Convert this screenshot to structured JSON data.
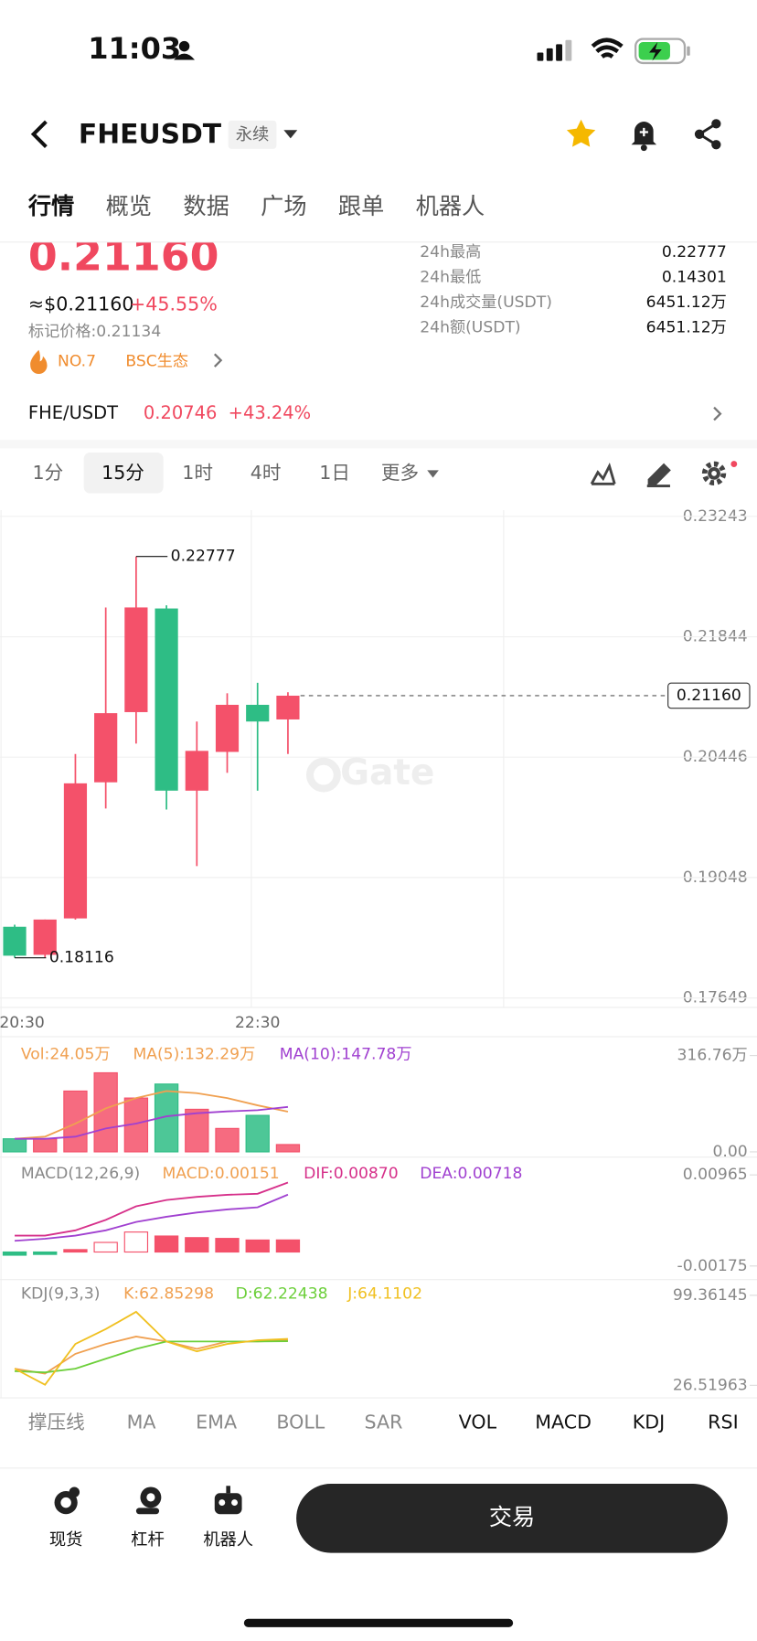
{
  "status": {
    "time": "11:03"
  },
  "header": {
    "symbol": "FHEUSDT",
    "tag": "永续"
  },
  "tabs": [
    "行情",
    "概览",
    "数据",
    "广场",
    "跟单",
    "机器人"
  ],
  "ticker": {
    "price": "0.21160",
    "usd": "≈$0.21160",
    "change": "+45.55%",
    "mark": "标记价格:0.21134",
    "rank": "NO.7",
    "sector": "BSC生态"
  },
  "stats": [
    {
      "label": "24h最高",
      "value": "0.22777"
    },
    {
      "label": "24h最低",
      "value": "0.14301"
    },
    {
      "label": "24h成交量(USDT)",
      "value": "6451.12万"
    },
    {
      "label": "24h额(USDT)",
      "value": "6451.12万"
    }
  ],
  "spot": {
    "pair": "FHE/USDT",
    "price": "0.20746",
    "change": "+43.24%"
  },
  "intervals": [
    "1分",
    "15分",
    "1时",
    "4时",
    "1日",
    "更多"
  ],
  "watermark": "Gate",
  "chart_data": [
    {
      "type": "candlestick",
      "up_color": "#f4516a",
      "down_color": "#2ebd85",
      "categories": [
        "20:30",
        null,
        null,
        null,
        null,
        null,
        null,
        null,
        "22:30",
        null
      ],
      "open": [
        0.18476,
        0.1815,
        0.18573,
        0.20154,
        0.20969,
        0.22173,
        0.20057,
        0.20507,
        0.21054,
        0.20884
      ],
      "high": [
        0.185,
        0.1856,
        0.20483,
        0.22185,
        0.22777,
        0.2221,
        0.2086,
        0.21188,
        0.2131,
        0.212
      ],
      "low": [
        0.18116,
        0.18116,
        0.1856,
        0.1985,
        0.20604,
        0.19838,
        0.19181,
        0.20264,
        0.20057,
        0.20483
      ],
      "close": [
        0.1814,
        0.1856,
        0.20142,
        0.20957,
        0.22185,
        0.20057,
        0.20519,
        0.21054,
        0.2086,
        0.2116
      ],
      "ylim": [
        0.17649,
        0.23243
      ],
      "yticks": [
        0.23243,
        0.21844,
        0.20446,
        0.19048,
        0.17649
      ],
      "grid": true,
      "last_price": {
        "value": 0.2116,
        "label": "0.21160"
      },
      "max_label": 0.22777,
      "min_label": 0.18116
    },
    {
      "type": "bar",
      "values": [
        43,
        43,
        200,
        260,
        177,
        223,
        140,
        77,
        120,
        24.05
      ],
      "series": [
        {
          "name": "MA(5)",
          "color": "#f0a050",
          "values": [
            43,
            50,
            93,
            143,
            177,
            200,
            193,
            177,
            153,
            132.29
          ]
        },
        {
          "name": "MA(10)",
          "color": "#a040d0",
          "values": [
            43,
            43,
            50,
            77,
            93,
            117,
            127,
            133,
            137,
            147.78
          ]
        }
      ],
      "ylim": [
        0,
        316.76
      ],
      "yticks": [
        {
          "value": 316.76,
          "label": "316.76万"
        },
        {
          "value": 0,
          "label": "0.00"
        }
      ],
      "legend": [
        {
          "text": "Vol:24.05万",
          "color": "#f0a050"
        },
        {
          "text": "MA(5):132.29万",
          "color": "#f0a050"
        },
        {
          "text": "MA(10):147.78万",
          "color": "#a040d0"
        }
      ]
    },
    {
      "type": "bar",
      "values": [
        -0.0004,
        -0.0003,
        0.0003,
        0.0012,
        0.0025,
        0.002,
        0.0018,
        0.0017,
        0.0015,
        0.00151
      ],
      "series": [
        {
          "name": "DIF",
          "color": "#d6308a",
          "values": [
            0.00205,
            0.00205,
            0.00271,
            0.00402,
            0.00572,
            0.00651,
            0.0069,
            0.00716,
            0.00729,
            0.0087
          ]
        },
        {
          "name": "DEA",
          "color": "#a040d0",
          "values": [
            0.0014,
            0.00166,
            0.00205,
            0.00271,
            0.00376,
            0.00441,
            0.00494,
            0.00533,
            0.00559,
            0.00718
          ]
        }
      ],
      "ylim": [
        -0.00175,
        0.00965
      ],
      "yticks": [
        0.00965,
        -0.00175
      ],
      "legend": [
        {
          "text": "MACD(12,26,9)",
          "color": "#888888"
        },
        {
          "text": "MACD:0.00151",
          "color": "#f0a050"
        },
        {
          "text": "DIF:0.00870",
          "color": "#d6308a"
        },
        {
          "text": "DEA:0.00718",
          "color": "#a040d0"
        }
      ]
    },
    {
      "type": "line",
      "series": [
        {
          "name": "K",
          "color": "#f0a050",
          "values": [
            40,
            36,
            52,
            60,
            66,
            62,
            56,
            62,
            62,
            62.85298
          ]
        },
        {
          "name": "D",
          "color": "#6ccf3a",
          "values": [
            38,
            37,
            40,
            48,
            56,
            62,
            62,
            62,
            62,
            62.22438
          ]
        },
        {
          "name": "J",
          "color": "#f0c020",
          "values": [
            40,
            27,
            60,
            72,
            86,
            62,
            54,
            60,
            63,
            64.1102
          ]
        }
      ],
      "ylim": [
        26.51963,
        99.36145
      ],
      "yticks": [
        99.36145,
        26.51963
      ],
      "legend": [
        {
          "text": "KDJ(9,3,3)",
          "color": "#888888"
        },
        {
          "text": "K:62.85298",
          "color": "#f0a050"
        },
        {
          "text": "D:62.22438",
          "color": "#6ccf3a"
        },
        {
          "text": "J:64.1102",
          "color": "#f0c020"
        }
      ]
    }
  ],
  "indicators": [
    "撑压线",
    "MA",
    "EMA",
    "BOLL",
    "SAR",
    "VOL",
    "MACD",
    "KDJ",
    "RSI"
  ],
  "nav": [
    "现货",
    "杠杆",
    "机器人"
  ],
  "trade_button": "交易"
}
